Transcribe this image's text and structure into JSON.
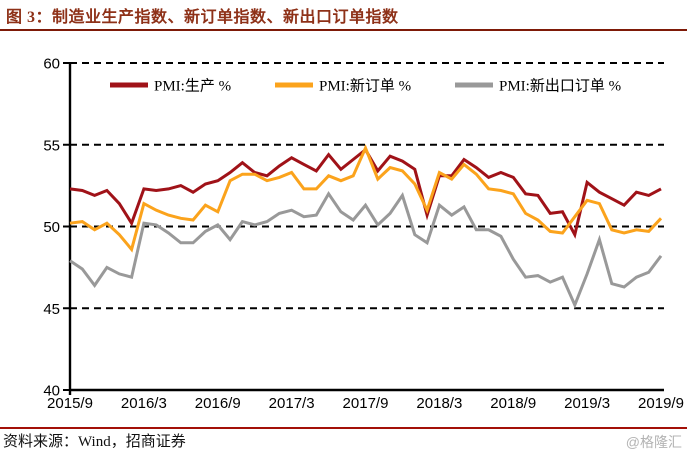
{
  "figure": {
    "title": "图 3：制造业生产指数、新订单指数、新出口订单指数",
    "source_note": "资料来源：Wind，招商证券",
    "watermark": "@格隆汇"
  },
  "colors": {
    "title": "#8E3118",
    "title_rule": "#7E1A08",
    "footer_rule": "#A31008",
    "axis": "#000000",
    "grid": "#000000",
    "watermark": "#B3B3B3"
  },
  "chart_data": {
    "type": "line",
    "title": "制造业生产指数、新订单指数、新出口订单指数",
    "xlabel": "",
    "ylabel": "",
    "ylim": [
      40,
      60
    ],
    "y_ticks": [
      40,
      45,
      50,
      55,
      60
    ],
    "grid": "horizontal-dashed",
    "legend_position": "top-inside",
    "x": [
      "2015/9",
      "2015/10",
      "2015/11",
      "2015/12",
      "2016/1",
      "2016/2",
      "2016/3",
      "2016/4",
      "2016/5",
      "2016/6",
      "2016/7",
      "2016/8",
      "2016/9",
      "2016/10",
      "2016/11",
      "2016/12",
      "2017/1",
      "2017/2",
      "2017/3",
      "2017/4",
      "2017/5",
      "2017/6",
      "2017/7",
      "2017/8",
      "2017/9",
      "2017/10",
      "2017/11",
      "2017/12",
      "2018/1",
      "2018/2",
      "2018/3",
      "2018/4",
      "2018/5",
      "2018/6",
      "2018/7",
      "2018/8",
      "2018/9",
      "2018/10",
      "2018/11",
      "2018/12",
      "2019/1",
      "2019/2",
      "2019/3",
      "2019/4",
      "2019/5",
      "2019/6",
      "2019/7",
      "2019/8",
      "2019/9"
    ],
    "x_tick_labels": [
      "2015/9",
      "2016/3",
      "2016/9",
      "2017/3",
      "2017/9",
      "2018/3",
      "2018/9",
      "2019/3",
      "2019/9"
    ],
    "series": [
      {
        "key": "production",
        "name": "PMI:生产 %",
        "color": "#A01218",
        "values": [
          52.3,
          52.2,
          51.9,
          52.2,
          51.4,
          50.2,
          52.3,
          52.2,
          52.3,
          52.5,
          52.1,
          52.6,
          52.8,
          53.3,
          53.9,
          53.3,
          53.1,
          53.7,
          54.2,
          53.8,
          53.4,
          54.4,
          53.5,
          54.1,
          54.7,
          53.4,
          54.3,
          54.0,
          53.5,
          50.7,
          53.1,
          53.1,
          54.1,
          53.6,
          53.0,
          53.3,
          53.0,
          52.0,
          51.9,
          50.8,
          50.9,
          49.5,
          52.7,
          52.1,
          51.7,
          51.3,
          52.1,
          51.9,
          52.3
        ]
      },
      {
        "key": "new_orders",
        "name": "PMI:新订单 %",
        "color": "#FBA31C",
        "values": [
          50.2,
          50.3,
          49.8,
          50.2,
          49.5,
          48.6,
          51.4,
          51.0,
          50.7,
          50.5,
          50.4,
          51.3,
          50.9,
          52.8,
          53.2,
          53.2,
          52.8,
          53.0,
          53.3,
          52.3,
          52.3,
          53.1,
          52.8,
          53.1,
          54.8,
          52.9,
          53.6,
          53.4,
          52.6,
          51.0,
          53.3,
          52.9,
          53.8,
          53.2,
          52.3,
          52.2,
          52.0,
          50.8,
          50.4,
          49.7,
          49.6,
          50.6,
          51.6,
          51.4,
          49.8,
          49.6,
          49.8,
          49.7,
          50.5
        ]
      },
      {
        "key": "new_export_orders",
        "name": "PMI:新出口订单 %",
        "color": "#999999",
        "values": [
          47.9,
          47.4,
          46.4,
          47.5,
          47.1,
          46.9,
          50.2,
          50.1,
          49.6,
          49.0,
          49.0,
          49.7,
          50.1,
          49.2,
          50.3,
          50.1,
          50.3,
          50.8,
          51.0,
          50.6,
          50.7,
          52.0,
          50.9,
          50.4,
          51.3,
          50.1,
          50.8,
          51.9,
          49.5,
          49.0,
          51.3,
          50.7,
          51.2,
          49.8,
          49.8,
          49.4,
          48.0,
          46.9,
          47.0,
          46.6,
          46.9,
          45.2,
          47.1,
          49.2,
          46.5,
          46.3,
          46.9,
          47.2,
          48.2
        ]
      }
    ]
  }
}
